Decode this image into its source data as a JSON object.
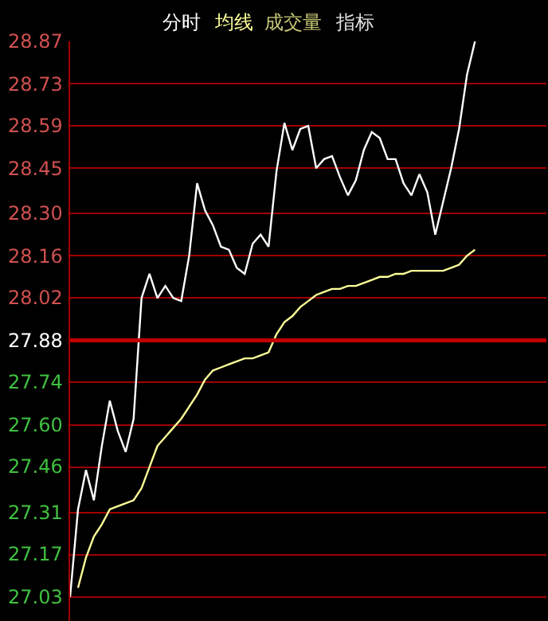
{
  "chart_data": {
    "type": "line",
    "categories": [
      null,
      null,
      null,
      null,
      null,
      null,
      null,
      null,
      null,
      null,
      null,
      null,
      null,
      null,
      null,
      null,
      null,
      null,
      null,
      null,
      null,
      null,
      null,
      null,
      null,
      null,
      null,
      null,
      null,
      null,
      null,
      null,
      null,
      null,
      null,
      null,
      null,
      null,
      null,
      null,
      null,
      null,
      null,
      null,
      null,
      null,
      null,
      null,
      null,
      null,
      null,
      null,
      null,
      null,
      null,
      null,
      null,
      null,
      null,
      null,
      null
    ],
    "series": [
      {
        "name": "分时",
        "color": "#ffffff",
        "values": [
          27.03,
          27.32,
          27.45,
          27.35,
          27.53,
          27.68,
          27.58,
          27.51,
          27.62,
          28.02,
          28.1,
          28.02,
          28.06,
          28.02,
          28.01,
          28.16,
          28.4,
          28.31,
          28.26,
          28.19,
          28.18,
          28.12,
          28.1,
          28.2,
          28.23,
          28.19,
          28.44,
          28.6,
          28.51,
          28.58,
          28.59,
          28.45,
          28.48,
          28.49,
          28.42,
          28.36,
          28.41,
          28.51,
          28.57,
          28.55,
          28.48,
          28.48,
          28.4,
          28.36,
          28.43,
          28.37,
          28.23,
          28.34,
          28.45,
          28.58,
          28.76,
          28.87,
          null,
          null,
          null,
          null,
          null,
          null,
          null,
          null,
          null
        ]
      },
      {
        "name": "均线",
        "color": "#ffff99",
        "values": [
          null,
          27.06,
          27.16,
          27.23,
          27.27,
          27.32,
          27.33,
          27.34,
          27.35,
          27.39,
          27.46,
          27.53,
          27.56,
          27.59,
          27.62,
          27.66,
          27.7,
          27.75,
          27.78,
          27.79,
          27.8,
          27.81,
          27.82,
          27.82,
          27.83,
          27.84,
          27.9,
          27.94,
          27.96,
          27.99,
          28.01,
          28.03,
          28.04,
          28.05,
          28.05,
          28.06,
          28.06,
          28.07,
          28.08,
          28.09,
          28.09,
          28.1,
          28.1,
          28.11,
          28.11,
          28.11,
          28.11,
          28.11,
          28.12,
          28.13,
          28.16,
          28.18,
          null,
          null,
          null,
          null,
          null,
          null,
          null,
          null,
          null
        ]
      }
    ],
    "annotations": [
      "成交量",
      "指标"
    ],
    "ylim": [
      26.95,
      28.87
    ],
    "yticks": [
      27.03,
      27.17,
      27.31,
      27.46,
      {
        "value": 27.6,
        "label": "27.60"
      },
      27.74,
      27.88,
      28.02,
      28.16,
      {
        "value": 28.3,
        "label": "28.30"
      },
      28.45,
      28.59,
      28.73,
      28.87
    ],
    "ref_lines": [
      {
        "axis": "y",
        "value": 27.88,
        "color": "#c00000"
      }
    ],
    "grid": "y",
    "legend": false,
    "marker": "none",
    "line_style": "solid",
    "tick_labels": "y"
  }
}
